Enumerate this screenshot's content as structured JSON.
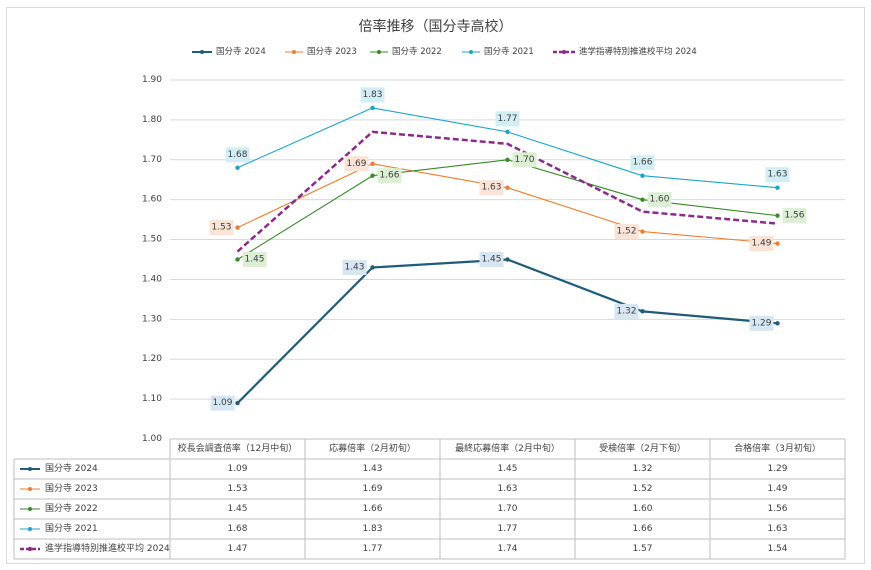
{
  "chart_data": {
    "type": "line",
    "title": "倍率推移（国分寺高校）",
    "categories": [
      "校長会調査倍率（12月中旬）",
      "応募倍率（2月初旬）",
      "最終応募倍率（2月中旬）",
      "受検倍率（2月下旬）",
      "合格倍率（3月初旬）"
    ],
    "ylim": [
      1.0,
      1.9
    ],
    "yticks": [
      "1.00",
      "1.10",
      "1.20",
      "1.30",
      "1.40",
      "1.50",
      "1.60",
      "1.70",
      "1.80",
      "1.90"
    ],
    "grid": true,
    "legend_position": "top",
    "data_table": true,
    "series": [
      {
        "name": "国分寺 2024",
        "values": [
          1.09,
          1.43,
          1.45,
          1.32,
          1.29
        ],
        "labels": [
          "1.09",
          "1.43",
          "1.45",
          "1.32",
          "1.29"
        ],
        "color": "#1f5c7a",
        "label_bg": "#d6e6f2",
        "dashed": false,
        "bold": true
      },
      {
        "name": "国分寺 2023",
        "values": [
          1.53,
          1.69,
          1.63,
          1.52,
          1.49
        ],
        "labels": [
          "1.53",
          "1.69",
          "1.63",
          "1.52",
          "1.49"
        ],
        "color": "#ed7d31",
        "label_bg": "#fbe3d6",
        "dashed": false,
        "bold": false
      },
      {
        "name": "国分寺 2022",
        "values": [
          1.45,
          1.66,
          1.7,
          1.6,
          1.56
        ],
        "labels": [
          "1.45",
          "1.66",
          "1.70",
          "1.60",
          "1.56"
        ],
        "color": "#3a8a2a",
        "label_bg": "#dcefd4",
        "dashed": false,
        "bold": false
      },
      {
        "name": "国分寺 2021",
        "values": [
          1.68,
          1.83,
          1.77,
          1.66,
          1.63
        ],
        "labels": [
          "1.68",
          "1.83",
          "1.77",
          "1.66",
          "1.63"
        ],
        "color": "#1ca5c8",
        "label_bg": "#d3edf5",
        "dashed": false,
        "bold": false
      },
      {
        "name": "進学指導特別推進校平均 2024",
        "values": [
          1.47,
          1.77,
          1.74,
          1.57,
          1.54
        ],
        "labels": [
          "1.47",
          "1.77",
          "1.74",
          "1.57",
          "1.54"
        ],
        "color": "#8c2a8c",
        "label_bg": "",
        "dashed": true,
        "bold": true
      }
    ]
  }
}
